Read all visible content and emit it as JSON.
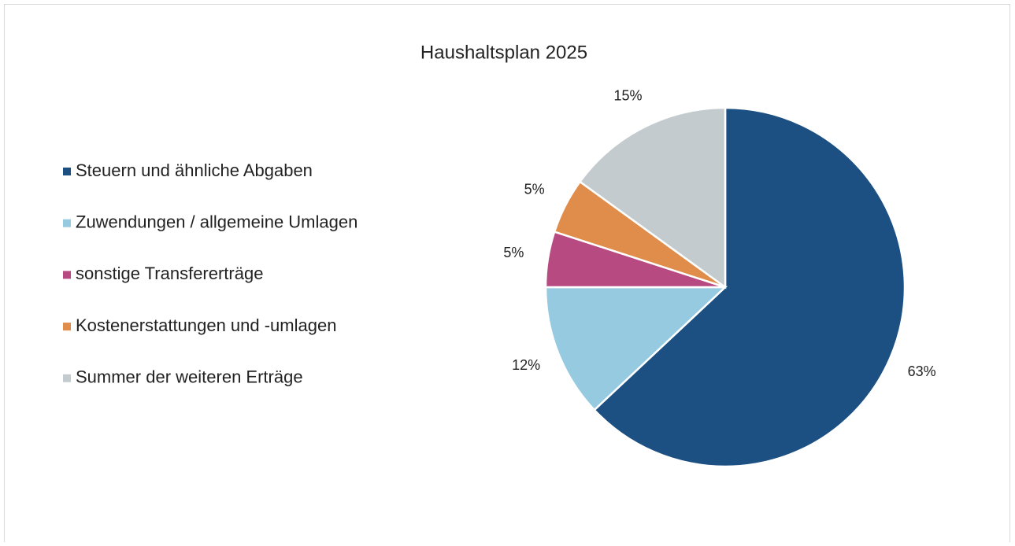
{
  "chart_data": {
    "type": "pie",
    "title": "Haushaltsplan 2025",
    "categories": [
      "Steuern und ähnliche Abgaben",
      "Zuwendungen / allgemeine Umlagen",
      "sonstige Transfererträge",
      "Kostenerstattungen und -umlagen",
      "Summer der weiteren Erträge"
    ],
    "values": [
      63,
      12,
      5,
      5,
      15
    ],
    "value_labels": [
      "63%",
      "12%",
      "5%",
      "5%",
      "15%"
    ],
    "colors": [
      "#1c4f82",
      "#96cae1",
      "#b84a82",
      "#e08c4a",
      "#c3cbce"
    ],
    "legend": "left"
  }
}
